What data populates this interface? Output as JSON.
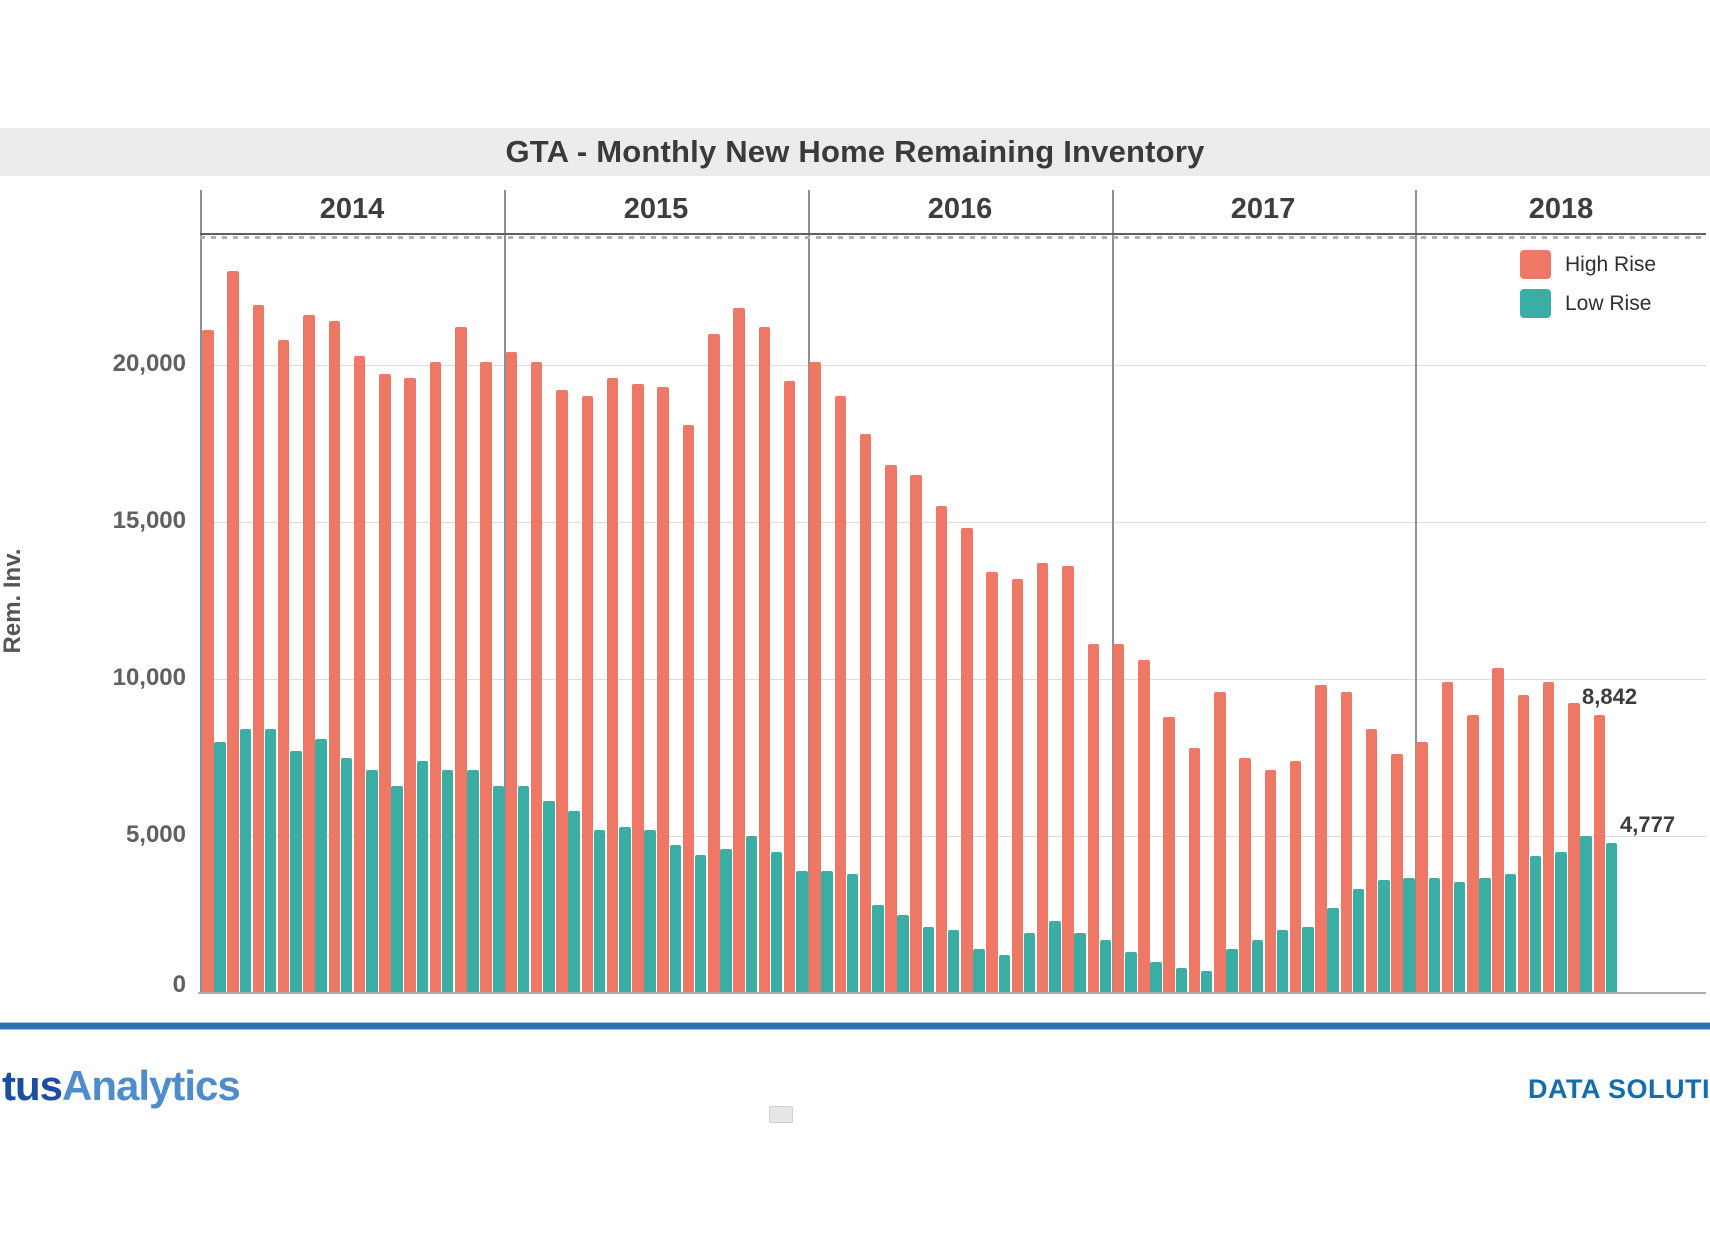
{
  "page": {
    "title": "GTA - Monthly New Home Remaining Inventory"
  },
  "chart_data": {
    "type": "bar",
    "title": "GTA - Monthly New Home Remaining Inventory",
    "xlabel": "",
    "ylabel": "Rem. Inv.",
    "ylim": [
      0,
      24200
    ],
    "grid": true,
    "legend_position": "top-right",
    "yticks": [
      0,
      5000,
      10000,
      15000,
      20000
    ],
    "ytick_labels": [
      "0",
      "5,000",
      "10,000",
      "15,000",
      "20,000"
    ],
    "year_groups": [
      {
        "label": "2014",
        "months": 12
      },
      {
        "label": "2015",
        "months": 12
      },
      {
        "label": "2016",
        "months": 12
      },
      {
        "label": "2017",
        "months": 12
      },
      {
        "label": "2018",
        "months": 8
      }
    ],
    "x": [
      "2014-01",
      "2014-02",
      "2014-03",
      "2014-04",
      "2014-05",
      "2014-06",
      "2014-07",
      "2014-08",
      "2014-09",
      "2014-10",
      "2014-11",
      "2014-12",
      "2015-01",
      "2015-02",
      "2015-03",
      "2015-04",
      "2015-05",
      "2015-06",
      "2015-07",
      "2015-08",
      "2015-09",
      "2015-10",
      "2015-11",
      "2015-12",
      "2016-01",
      "2016-02",
      "2016-03",
      "2016-04",
      "2016-05",
      "2016-06",
      "2016-07",
      "2016-08",
      "2016-09",
      "2016-10",
      "2016-11",
      "2016-12",
      "2017-01",
      "2017-02",
      "2017-03",
      "2017-04",
      "2017-05",
      "2017-06",
      "2017-07",
      "2017-08",
      "2017-09",
      "2017-10",
      "2017-11",
      "2017-12",
      "2018-01",
      "2018-02",
      "2018-03",
      "2018-04",
      "2018-05",
      "2018-06",
      "2018-07",
      "2018-08"
    ],
    "series": [
      {
        "name": "High Rise",
        "color": "#EE7765",
        "values": [
          21100,
          23000,
          21900,
          20800,
          21600,
          21400,
          20300,
          19700,
          19600,
          20100,
          21200,
          20100,
          20400,
          20100,
          19200,
          19000,
          19600,
          19400,
          19300,
          18100,
          21000,
          21800,
          21200,
          19500,
          20100,
          19000,
          17800,
          16800,
          16500,
          15500,
          14800,
          13400,
          13200,
          13700,
          13600,
          11100,
          11100,
          10600,
          8800,
          7800,
          9600,
          7500,
          7100,
          7400,
          9800,
          9600,
          8400,
          7600,
          8000,
          9900,
          8850,
          10350,
          9500,
          9900,
          9250,
          8842
        ]
      },
      {
        "name": "Low Rise",
        "color": "#3AADA4",
        "values": [
          8000,
          8400,
          8400,
          7700,
          8100,
          7500,
          7100,
          6600,
          7400,
          7100,
          7100,
          6600,
          6600,
          6100,
          5800,
          5200,
          5300,
          5200,
          4700,
          4400,
          4600,
          5000,
          4500,
          3900,
          3900,
          3800,
          2800,
          2500,
          2100,
          2000,
          1400,
          1200,
          1900,
          2300,
          1900,
          1700,
          1300,
          1000,
          800,
          700,
          1400,
          1700,
          2000,
          2100,
          2700,
          3300,
          3600,
          3650,
          3650,
          3550,
          3650,
          3800,
          4350,
          4500,
          5000,
          4777
        ]
      }
    ],
    "annotations": [
      {
        "text": "8,842",
        "value": 8842,
        "series": "High Rise",
        "month": "2018-08"
      },
      {
        "text": "4,777",
        "value": 4777,
        "series": "Low Rise",
        "month": "2018-08"
      }
    ]
  },
  "footer": {
    "logo_part1": "tus",
    "logo_part2": "Analytics",
    "right_text": "DATA SOLUTIO"
  }
}
